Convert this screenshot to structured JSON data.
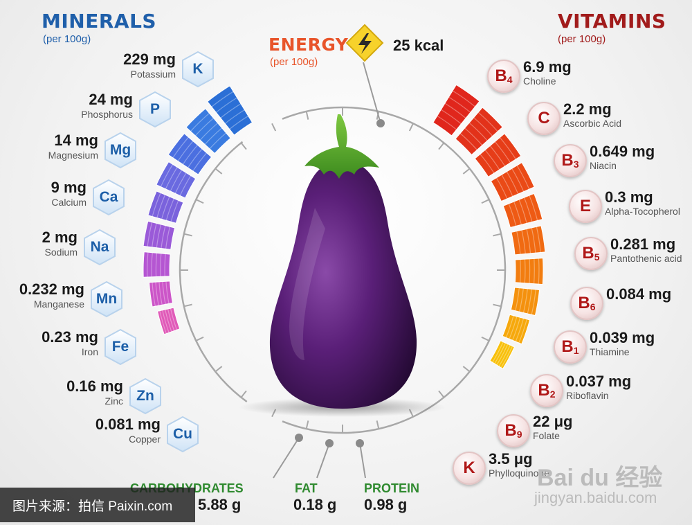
{
  "minerals": {
    "title": "MINERALS",
    "subtitle": "(per 100g)",
    "items": [
      {
        "value": "229 mg",
        "name": "Potassium",
        "symbol": "K"
      },
      {
        "value": "24 mg",
        "name": "Phosphorus",
        "symbol": "P"
      },
      {
        "value": "14 mg",
        "name": "Magnesium",
        "symbol": "Mg"
      },
      {
        "value": "9 mg",
        "name": "Calcium",
        "symbol": "Ca"
      },
      {
        "value": "2 mg",
        "name": "Sodium",
        "symbol": "Na"
      },
      {
        "value": "0.232 mg",
        "name": "Manganese",
        "symbol": "Mn"
      },
      {
        "value": "0.23 mg",
        "name": "Iron",
        "symbol": "Fe"
      },
      {
        "value": "0.16 mg",
        "name": "Zinc",
        "symbol": "Zn"
      },
      {
        "value": "0.081 mg",
        "name": "Copper",
        "symbol": "Cu"
      }
    ]
  },
  "energy": {
    "title": "ENERGY",
    "subtitle": "(per 100g)",
    "value": "25 kcal"
  },
  "vitamins": {
    "title": "VITAMINS",
    "subtitle": "(per 100g)",
    "items": [
      {
        "value": "6.9 mg",
        "name": "Choline",
        "letter": "B",
        "index": "4"
      },
      {
        "value": "2.2 mg",
        "name": "Ascorbic Acid",
        "letter": "C",
        "index": ""
      },
      {
        "value": "0.649 mg",
        "name": "Niacin",
        "letter": "B",
        "index": "3"
      },
      {
        "value": "0.3 mg",
        "name": "Alpha-Tocopherol",
        "letter": "E",
        "index": ""
      },
      {
        "value": "0.281 mg",
        "name": "Pantothenic acid",
        "letter": "B",
        "index": "5"
      },
      {
        "value": "0.084 mg",
        "name": "",
        "letter": "B",
        "index": "6"
      },
      {
        "value": "0.039 mg",
        "name": "Thiamine",
        "letter": "B",
        "index": "1"
      },
      {
        "value": "0.037 mg",
        "name": "Riboflavin",
        "letter": "B",
        "index": "2"
      },
      {
        "value": "22 μg",
        "name": "Folate",
        "letter": "B",
        "index": "9"
      },
      {
        "value": "3.5 μg",
        "name": "Phylloquinone",
        "letter": "K",
        "index": ""
      }
    ]
  },
  "macros": [
    {
      "label": "CARBOHYDRATES",
      "value": "5.88 g"
    },
    {
      "label": "FAT",
      "value": "0.18 g"
    },
    {
      "label": "PROTEIN",
      "value": "0.98 g"
    }
  ],
  "watermark_left": "图片来源：拍信 Paixin.com",
  "watermark_right": {
    "brand": "Bai du 经验",
    "url": "jingyan.baidu.com"
  },
  "colors": {
    "minerals": "#1f5faa",
    "vitamins": "#a11b1b",
    "energy": "#e8542a",
    "macros": "#2f8a2f"
  }
}
